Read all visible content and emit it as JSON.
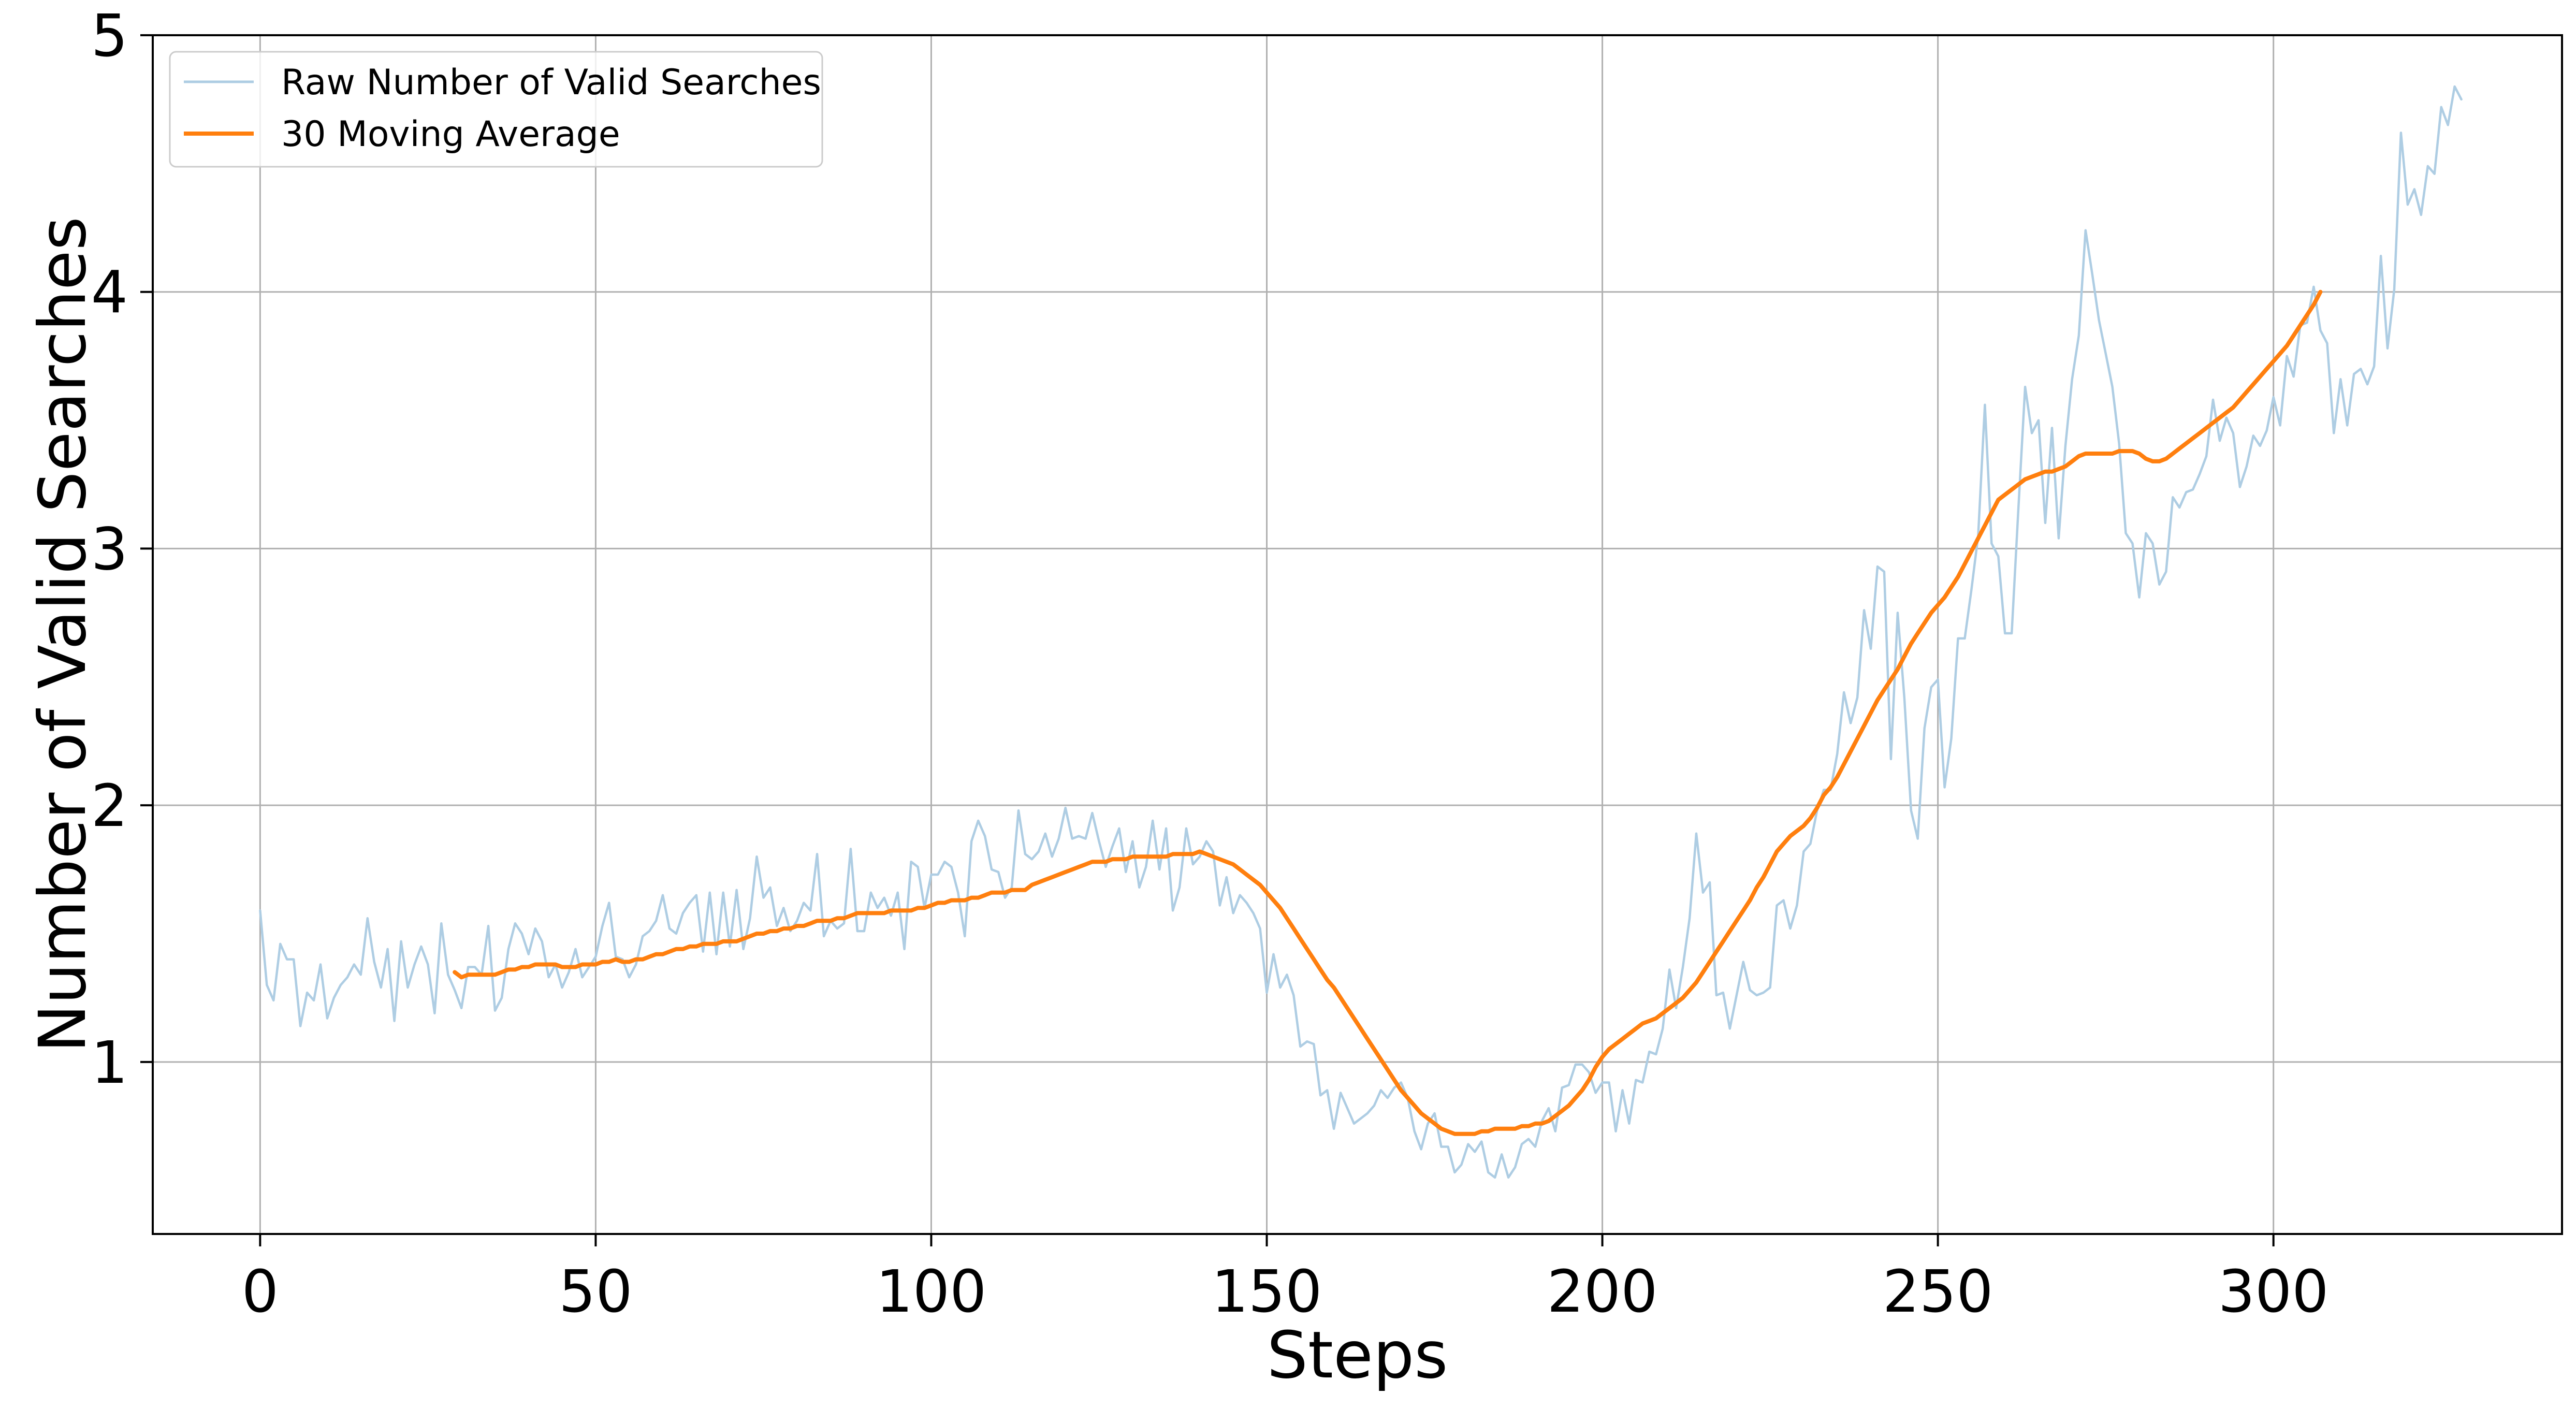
{
  "chart_data": {
    "type": "line",
    "title": "",
    "xlabel": "Steps",
    "ylabel": "Number of Valid Searches",
    "xlim": [
      -16,
      343
    ],
    "ylim": [
      0.33,
      5.0
    ],
    "x_ticks": [
      0,
      50,
      100,
      150,
      200,
      250,
      300
    ],
    "y_ticks": [
      1,
      2,
      3,
      4,
      5
    ],
    "grid": true,
    "legend_position": "top-left",
    "series": [
      {
        "name": "Raw Number of Valid Searches",
        "color": "#aecde3",
        "x_start": 0,
        "x_step": 1,
        "values": [
          1.59,
          1.3,
          1.24,
          1.46,
          1.4,
          1.4,
          1.14,
          1.27,
          1.24,
          1.38,
          1.17,
          1.25,
          1.3,
          1.33,
          1.38,
          1.34,
          1.56,
          1.39,
          1.29,
          1.44,
          1.16,
          1.47,
          1.29,
          1.38,
          1.45,
          1.38,
          1.19,
          1.54,
          1.34,
          1.28,
          1.21,
          1.37,
          1.37,
          1.34,
          1.53,
          1.2,
          1.25,
          1.44,
          1.54,
          1.5,
          1.42,
          1.52,
          1.47,
          1.33,
          1.38,
          1.29,
          1.35,
          1.44,
          1.33,
          1.37,
          1.41,
          1.53,
          1.62,
          1.41,
          1.4,
          1.33,
          1.38,
          1.49,
          1.51,
          1.55,
          1.65,
          1.52,
          1.5,
          1.58,
          1.62,
          1.65,
          1.43,
          1.66,
          1.42,
          1.66,
          1.45,
          1.67,
          1.44,
          1.56,
          1.8,
          1.64,
          1.68,
          1.53,
          1.6,
          1.51,
          1.55,
          1.62,
          1.59,
          1.81,
          1.49,
          1.55,
          1.52,
          1.54,
          1.83,
          1.51,
          1.51,
          1.66,
          1.6,
          1.64,
          1.57,
          1.66,
          1.44,
          1.78,
          1.76,
          1.6,
          1.73,
          1.73,
          1.78,
          1.76,
          1.66,
          1.49,
          1.86,
          1.94,
          1.88,
          1.75,
          1.74,
          1.64,
          1.68,
          1.98,
          1.81,
          1.79,
          1.82,
          1.89,
          1.8,
          1.87,
          1.99,
          1.87,
          1.88,
          1.87,
          1.97,
          1.86,
          1.76,
          1.84,
          1.91,
          1.74,
          1.86,
          1.68,
          1.76,
          1.94,
          1.75,
          1.91,
          1.59,
          1.68,
          1.91,
          1.77,
          1.8,
          1.86,
          1.82,
          1.61,
          1.72,
          1.58,
          1.65,
          1.62,
          1.58,
          1.52,
          1.27,
          1.42,
          1.29,
          1.34,
          1.26,
          1.06,
          1.08,
          1.07,
          0.87,
          0.89,
          0.74,
          0.88,
          0.82,
          0.76,
          0.78,
          0.8,
          0.83,
          0.89,
          0.86,
          0.9,
          0.92,
          0.86,
          0.73,
          0.66,
          0.76,
          0.8,
          0.67,
          0.67,
          0.57,
          0.6,
          0.68,
          0.65,
          0.69,
          0.57,
          0.55,
          0.64,
          0.55,
          0.59,
          0.68,
          0.7,
          0.67,
          0.77,
          0.82,
          0.73,
          0.9,
          0.91,
          0.99,
          0.99,
          0.96,
          0.88,
          0.92,
          0.92,
          0.73,
          0.89,
          0.76,
          0.93,
          0.92,
          1.04,
          1.03,
          1.13,
          1.36,
          1.21,
          1.37,
          1.56,
          1.89,
          1.66,
          1.7,
          1.26,
          1.27,
          1.13,
          1.26,
          1.39,
          1.28,
          1.26,
          1.27,
          1.29,
          1.61,
          1.63,
          1.52,
          1.61,
          1.82,
          1.85,
          1.98,
          2.06,
          2.06,
          2.2,
          2.44,
          2.32,
          2.42,
          2.76,
          2.61,
          2.93,
          2.91,
          2.18,
          2.75,
          2.42,
          1.98,
          1.87,
          2.3,
          2.46,
          2.49,
          2.07,
          2.26,
          2.65,
          2.65,
          2.84,
          3.05,
          3.56,
          3.02,
          2.97,
          2.67,
          2.67,
          3.16,
          3.63,
          3.45,
          3.5,
          3.1,
          3.47,
          3.04,
          3.4,
          3.66,
          3.83,
          4.24,
          4.07,
          3.89,
          3.76,
          3.63,
          3.41,
          3.06,
          3.02,
          2.81,
          3.06,
          3.02,
          2.86,
          2.91,
          3.2,
          3.16,
          3.22,
          3.23,
          3.29,
          3.36,
          3.58,
          3.42,
          3.51,
          3.45,
          3.24,
          3.32,
          3.44,
          3.4,
          3.46,
          3.59,
          3.48,
          3.75,
          3.67,
          3.87,
          3.88,
          4.02,
          3.85,
          3.8,
          3.45,
          3.66,
          3.48,
          3.68,
          3.7,
          3.64,
          3.71,
          4.14,
          3.78,
          4.01,
          4.62,
          4.34,
          4.4,
          4.3,
          4.49,
          4.46,
          4.72,
          4.65,
          4.8,
          4.75
        ]
      },
      {
        "name": "30 Moving Average",
        "color": "#ff7f0e",
        "x_start": 29,
        "x_step": 1,
        "values": [
          1.35,
          1.33,
          1.34,
          1.34,
          1.34,
          1.34,
          1.34,
          1.35,
          1.36,
          1.36,
          1.37,
          1.37,
          1.38,
          1.38,
          1.38,
          1.38,
          1.37,
          1.37,
          1.37,
          1.38,
          1.38,
          1.38,
          1.39,
          1.39,
          1.4,
          1.39,
          1.39,
          1.4,
          1.4,
          1.41,
          1.42,
          1.42,
          1.43,
          1.44,
          1.44,
          1.45,
          1.45,
          1.46,
          1.46,
          1.46,
          1.47,
          1.47,
          1.47,
          1.48,
          1.49,
          1.5,
          1.5,
          1.51,
          1.51,
          1.52,
          1.52,
          1.53,
          1.53,
          1.54,
          1.55,
          1.55,
          1.55,
          1.56,
          1.56,
          1.57,
          1.58,
          1.58,
          1.58,
          1.58,
          1.58,
          1.59,
          1.59,
          1.59,
          1.59,
          1.6,
          1.6,
          1.61,
          1.62,
          1.62,
          1.63,
          1.63,
          1.63,
          1.64,
          1.64,
          1.65,
          1.66,
          1.66,
          1.66,
          1.67,
          1.67,
          1.67,
          1.69,
          1.7,
          1.71,
          1.72,
          1.73,
          1.74,
          1.75,
          1.76,
          1.77,
          1.78,
          1.78,
          1.78,
          1.79,
          1.79,
          1.79,
          1.8,
          1.8,
          1.8,
          1.8,
          1.8,
          1.8,
          1.81,
          1.81,
          1.81,
          1.81,
          1.82,
          1.81,
          1.8,
          1.79,
          1.78,
          1.77,
          1.75,
          1.73,
          1.71,
          1.69,
          1.66,
          1.63,
          1.6,
          1.56,
          1.52,
          1.48,
          1.44,
          1.4,
          1.36,
          1.32,
          1.29,
          1.25,
          1.21,
          1.17,
          1.13,
          1.09,
          1.05,
          1.01,
          0.97,
          0.93,
          0.89,
          0.86,
          0.83,
          0.8,
          0.78,
          0.76,
          0.74,
          0.73,
          0.72,
          0.72,
          0.72,
          0.72,
          0.73,
          0.73,
          0.74,
          0.74,
          0.74,
          0.74,
          0.75,
          0.75,
          0.76,
          0.76,
          0.77,
          0.79,
          0.81,
          0.83,
          0.86,
          0.89,
          0.93,
          0.98,
          1.02,
          1.05,
          1.07,
          1.09,
          1.11,
          1.13,
          1.15,
          1.16,
          1.17,
          1.19,
          1.21,
          1.23,
          1.25,
          1.28,
          1.31,
          1.35,
          1.39,
          1.43,
          1.47,
          1.51,
          1.55,
          1.59,
          1.63,
          1.68,
          1.72,
          1.77,
          1.82,
          1.85,
          1.88,
          1.9,
          1.92,
          1.95,
          1.99,
          2.04,
          2.07,
          2.11,
          2.16,
          2.21,
          2.26,
          2.31,
          2.36,
          2.41,
          2.45,
          2.49,
          2.53,
          2.58,
          2.63,
          2.67,
          2.71,
          2.75,
          2.78,
          2.81,
          2.85,
          2.89,
          2.94,
          2.99,
          3.04,
          3.09,
          3.14,
          3.19,
          3.21,
          3.23,
          3.25,
          3.27,
          3.28,
          3.29,
          3.3,
          3.3,
          3.31,
          3.32,
          3.34,
          3.36,
          3.37,
          3.37,
          3.37,
          3.37,
          3.37,
          3.38,
          3.38,
          3.38,
          3.37,
          3.35,
          3.34,
          3.34,
          3.35,
          3.37,
          3.39,
          3.41,
          3.43,
          3.45,
          3.47,
          3.49,
          3.51,
          3.53,
          3.55,
          3.58,
          3.61,
          3.64,
          3.67,
          3.7,
          3.73,
          3.76,
          3.79,
          3.83,
          3.87,
          3.91,
          3.95,
          4.0
        ]
      }
    ]
  }
}
